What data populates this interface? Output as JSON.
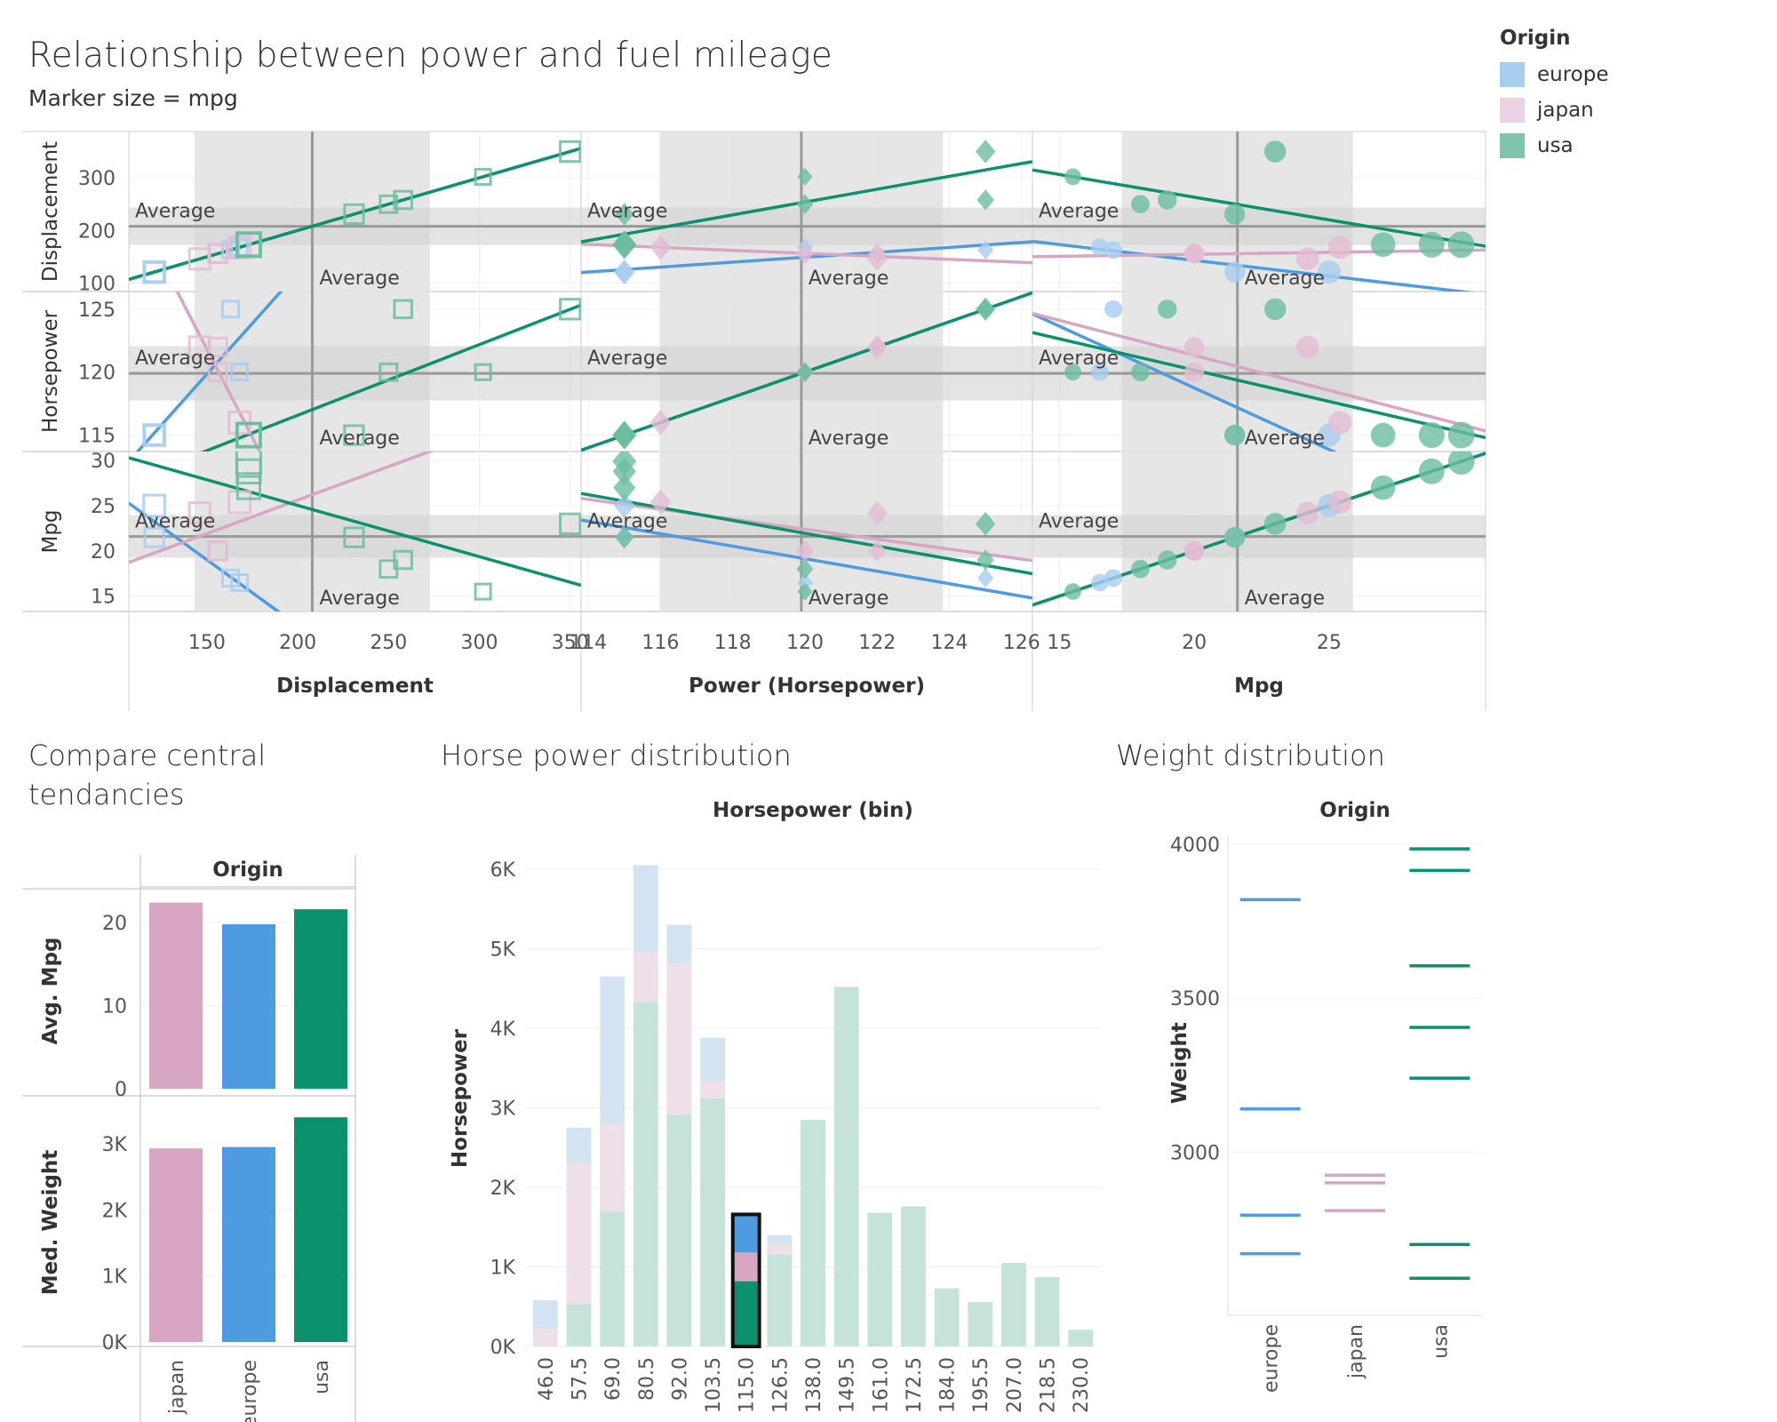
{
  "header": {
    "title": "Relationship between power and fuel mileage",
    "subtitle": "Marker size = mpg"
  },
  "legend": {
    "title": "Origin",
    "items": [
      {
        "label": "europe",
        "color": "#a8cdf0"
      },
      {
        "label": "japan",
        "color": "#ecd3e3"
      },
      {
        "label": "usa",
        "color": "#7fc4ab"
      }
    ]
  },
  "colors": {
    "europe": "#4e9be0",
    "japan": "#d7a6c2",
    "usa": "#0b916b",
    "band": "#e3e3e3",
    "refline": "#999999"
  },
  "average_label": "Average",
  "sections": {
    "central": "Compare central tendancies",
    "hp_dist": "Horse power distribution",
    "weight_dist": "Weight distribution"
  },
  "chart_data": [
    {
      "type": "scatter",
      "name": "scatter-matrix",
      "rows": [
        "Displacement",
        "Horsepower",
        "Mpg"
      ],
      "columns": [
        "Displacement",
        "Power (Horsepower)",
        "Mpg"
      ],
      "marks": {
        "Displacement": "square",
        "Power (Horsepower)": "diamond",
        "Mpg": "circle"
      },
      "tick_labels": {
        "Displacement": {
          "values": [
            150,
            200,
            250,
            300,
            350
          ],
          "row_values": [
            100,
            200,
            300
          ]
        },
        "Horsepower": {
          "values": [
            114,
            116,
            118,
            120,
            122,
            124,
            126
          ],
          "row_values": [
            115,
            120,
            125
          ]
        },
        "Mpg": {
          "values": [
            15,
            20,
            25
          ],
          "row_values": [
            15,
            20,
            25,
            30
          ]
        }
      },
      "ranges": {
        "Displacement": [
          107,
          356
        ],
        "Horsepower": [
          113.8,
          126.3
        ],
        "Mpg": [
          14,
          30.8
        ]
      },
      "row_ranges": {
        "Displacement": [
          84,
          388
        ],
        "Horsepower": [
          113.7,
          126.4
        ],
        "Mpg": [
          13.3,
          31
        ]
      },
      "averages": {
        "Displacement": 208,
        "Horsepower": 119.9,
        "Mpg": 21.6
      },
      "points": [
        {
          "origin": "europe",
          "displacement": 121,
          "horsepower": 115,
          "mpg": 25
        },
        {
          "origin": "europe",
          "displacement": 163,
          "horsepower": 125,
          "mpg": 17
        },
        {
          "origin": "europe",
          "displacement": 168,
          "horsepower": 120,
          "mpg": 16.5
        },
        {
          "origin": "europe",
          "displacement": 121,
          "horsepower": 115,
          "mpg": 21.5
        },
        {
          "origin": "japan",
          "displacement": 146,
          "horsepower": 122,
          "mpg": 24.2
        },
        {
          "origin": "japan",
          "displacement": 156,
          "horsepower": 122,
          "mpg": 20
        },
        {
          "origin": "japan",
          "displacement": 168,
          "horsepower": 116,
          "mpg": 25.4
        },
        {
          "origin": "japan",
          "displacement": 156,
          "horsepower": 120,
          "mpg": 20
        },
        {
          "origin": "usa",
          "displacement": 350,
          "horsepower": 125,
          "mpg": 23
        },
        {
          "origin": "usa",
          "displacement": 302,
          "horsepower": 120,
          "mpg": 15.5
        },
        {
          "origin": "usa",
          "displacement": 250,
          "horsepower": 120,
          "mpg": 18
        },
        {
          "origin": "usa",
          "displacement": 258,
          "horsepower": 125,
          "mpg": 19
        },
        {
          "origin": "usa",
          "displacement": 231,
          "horsepower": 115,
          "mpg": 21.5
        },
        {
          "origin": "usa",
          "displacement": 173,
          "horsepower": 115,
          "mpg": 27
        },
        {
          "origin": "usa",
          "displacement": 173,
          "horsepower": 115,
          "mpg": 28.8
        },
        {
          "origin": "usa",
          "displacement": 173,
          "horsepower": 115,
          "mpg": 29.9
        }
      ]
    },
    {
      "type": "bar",
      "name": "central-tendencies",
      "column_header": "Origin",
      "categories": [
        "japan",
        "europe",
        "usa"
      ],
      "panels": [
        {
          "ylabel": "Avg. Mpg",
          "values": [
            22.4,
            19.8,
            21.6
          ],
          "ticks": [
            0,
            10,
            20
          ],
          "ylim": [
            0,
            23
          ],
          "tick_labels": [
            "0",
            "10",
            "20"
          ]
        },
        {
          "ylabel": "Med. Weight",
          "values": [
            2930,
            2950,
            3400
          ],
          "ticks": [
            0,
            1000,
            2000,
            3000
          ],
          "ylim": [
            0,
            3550
          ],
          "tick_labels": [
            "0K",
            "1K",
            "2K",
            "3K"
          ]
        }
      ]
    },
    {
      "type": "bar",
      "name": "horsepower-distribution",
      "title": "Horsepower (bin)",
      "ylabel": "Horsepower",
      "stacked": true,
      "categories": [
        "46.0",
        "57.5",
        "69.0",
        "80.5",
        "92.0",
        "103.5",
        "115.0",
        "126.5",
        "138.0",
        "149.5",
        "161.0",
        "172.5",
        "184.0",
        "195.5",
        "207.0",
        "218.5",
        "230.0"
      ],
      "series": [
        {
          "name": "usa",
          "values": [
            0,
            530,
            1700,
            4330,
            2910,
            3120,
            820,
            1160,
            2850,
            4520,
            1680,
            1760,
            730,
            560,
            1050,
            870,
            210
          ]
        },
        {
          "name": "japan",
          "values": [
            220,
            1780,
            1100,
            620,
            1910,
            210,
            360,
            120,
            0,
            0,
            0,
            0,
            0,
            0,
            0,
            0,
            0
          ]
        },
        {
          "name": "europe",
          "values": [
            360,
            440,
            1850,
            1100,
            480,
            550,
            480,
            120,
            0,
            0,
            0,
            0,
            0,
            0,
            0,
            0,
            0
          ]
        }
      ],
      "highlighted": "115.0",
      "ticks": [
        0,
        1000,
        2000,
        3000,
        4000,
        5000,
        6000
      ],
      "tick_labels": [
        "0K",
        "1K",
        "2K",
        "3K",
        "4K",
        "5K",
        "6K"
      ],
      "ylim": [
        0,
        6200
      ]
    },
    {
      "type": "scatter",
      "name": "weight-distribution",
      "title": "Origin",
      "ylabel": "Weight",
      "categories": [
        "europe",
        "japan",
        "usa"
      ],
      "values": {
        "europe": [
          3820,
          3140,
          2795,
          2670
        ],
        "japan": [
          2925,
          2900,
          2810
        ],
        "usa": [
          3985,
          3915,
          3605,
          3405,
          3240,
          2700,
          2590
        ]
      },
      "ticks": [
        3000,
        3500,
        4000
      ],
      "tick_labels": [
        "3000",
        "3500",
        "4000"
      ],
      "ylim": [
        2510,
        4020
      ]
    }
  ]
}
